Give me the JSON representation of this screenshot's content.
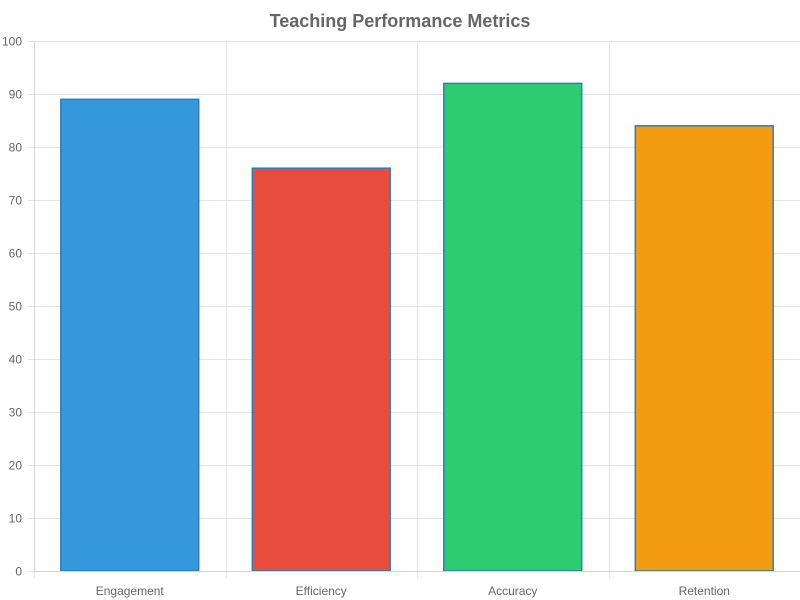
{
  "chart_data": {
    "type": "bar",
    "title": "Teaching Performance Metrics",
    "xlabel": "",
    "ylabel": "",
    "categories": [
      "Engagement",
      "Efficiency",
      "Accuracy",
      "Retention"
    ],
    "values": [
      89,
      76,
      92,
      84
    ],
    "colors": [
      "#3498db",
      "#e74c3c",
      "#2ecc71",
      "#f39c12"
    ],
    "border_color": "#2980b9",
    "ylim": [
      0,
      100
    ],
    "y_ticks": [
      0,
      10,
      20,
      30,
      40,
      50,
      60,
      70,
      80,
      90,
      100
    ],
    "grid": true,
    "legend": "none"
  }
}
